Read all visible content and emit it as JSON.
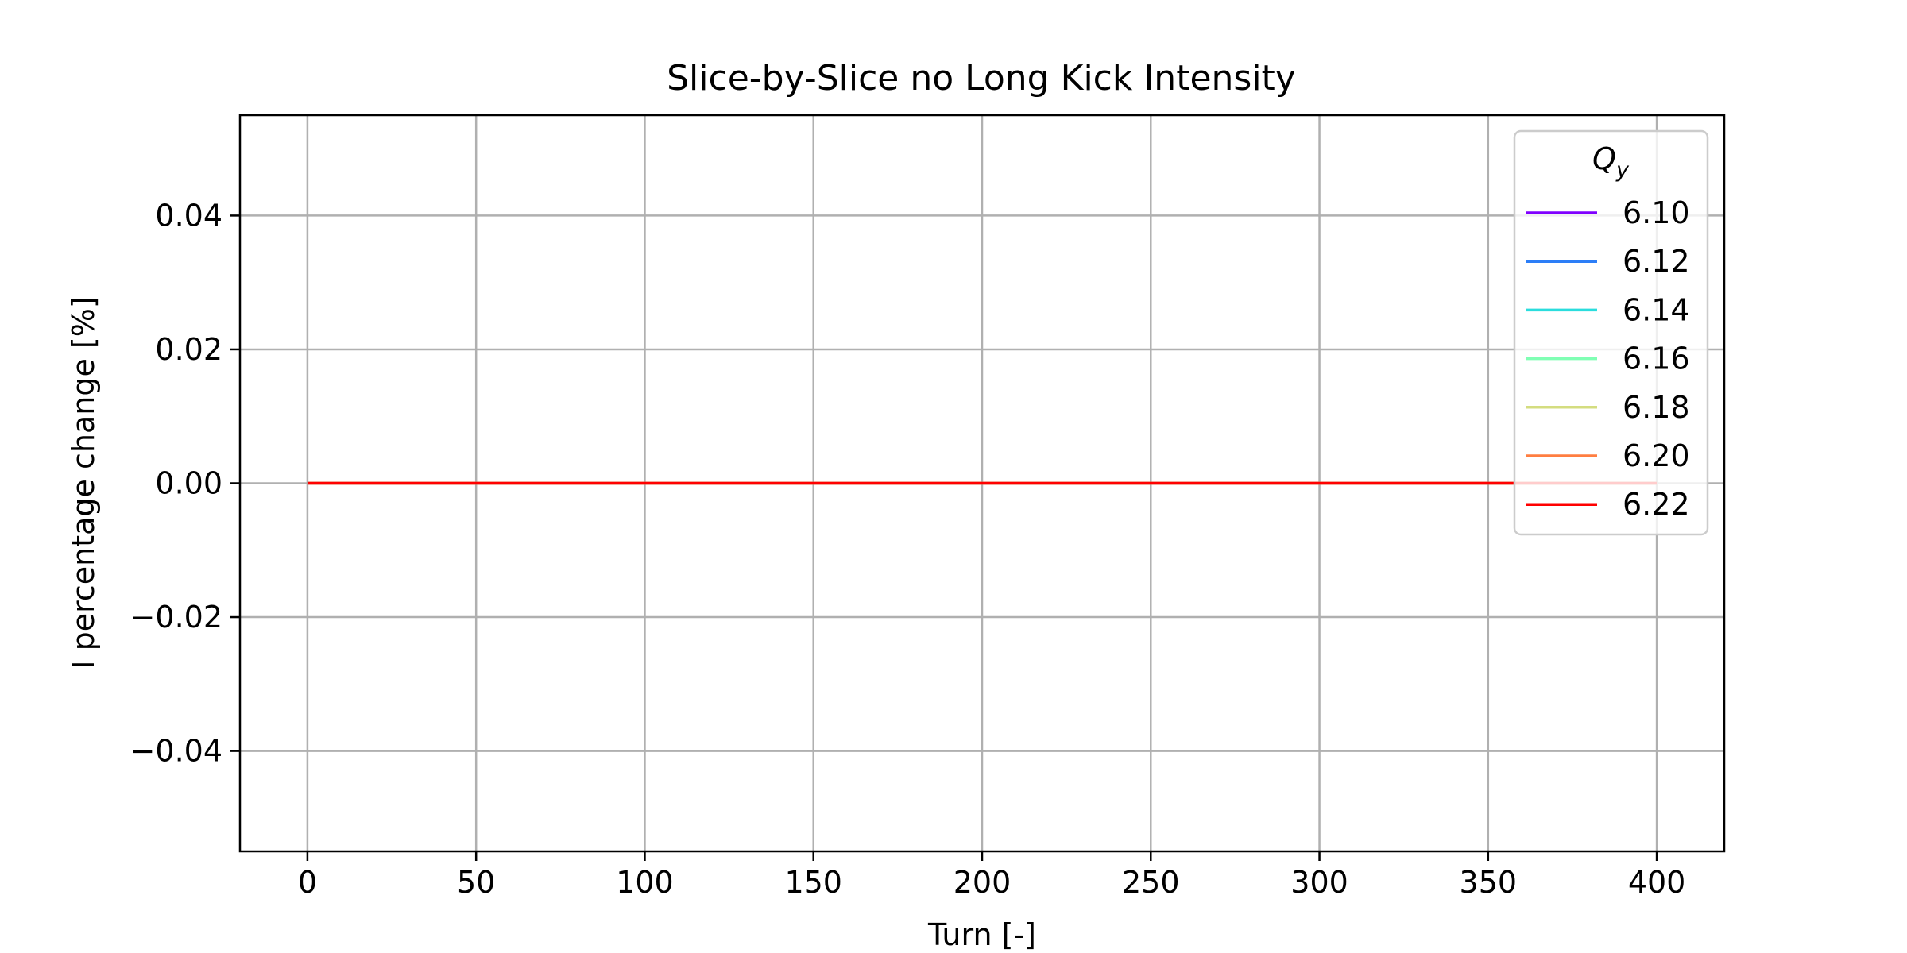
{
  "chart_data": {
    "type": "line",
    "title": "Slice-by-Slice no Long Kick Intensity",
    "xlabel": "Turn [-]",
    "ylabel": "I percentage change [%]",
    "xlim": [
      -20,
      420
    ],
    "ylim": [
      -0.055,
      0.055
    ],
    "xticks": [
      0,
      50,
      100,
      150,
      200,
      250,
      300,
      350,
      400
    ],
    "yticks": [
      -0.04,
      -0.02,
      0.0,
      0.02,
      0.04
    ],
    "xtick_labels": [
      "0",
      "50",
      "100",
      "150",
      "200",
      "250",
      "300",
      "350",
      "400"
    ],
    "ytick_labels": [
      "−0.04",
      "−0.02",
      "0.00",
      "0.02",
      "0.04"
    ],
    "grid": true,
    "legend": {
      "title_main": "Q",
      "title_sub": "y",
      "placement": "top-right"
    },
    "series": [
      {
        "name": "6.10",
        "color": "#8000ff",
        "x": [
          0,
          400
        ],
        "y": [
          0,
          0
        ]
      },
      {
        "name": "6.12",
        "color": "#2c7ef7",
        "x": [
          0,
          400
        ],
        "y": [
          0,
          0
        ]
      },
      {
        "name": "6.14",
        "color": "#2adddd",
        "x": [
          0,
          400
        ],
        "y": [
          0,
          0
        ]
      },
      {
        "name": "6.16",
        "color": "#80ffb4",
        "x": [
          0,
          400
        ],
        "y": [
          0,
          0
        ]
      },
      {
        "name": "6.18",
        "color": "#d4dd80",
        "x": [
          0,
          400
        ],
        "y": [
          0,
          0
        ]
      },
      {
        "name": "6.20",
        "color": "#ff7e41",
        "x": [
          0,
          400
        ],
        "y": [
          0,
          0
        ]
      },
      {
        "name": "6.22",
        "color": "#ff0000",
        "x": [
          0,
          400
        ],
        "y": [
          0,
          0
        ]
      }
    ]
  }
}
